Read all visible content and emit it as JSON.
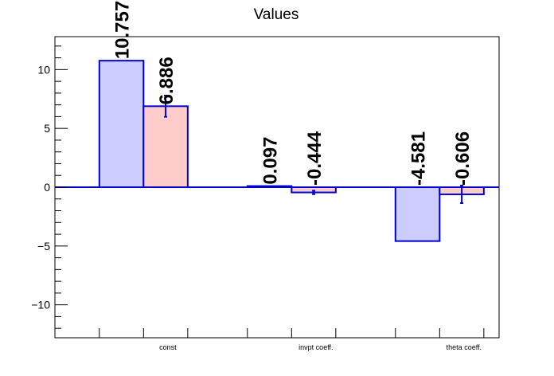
{
  "chart_data": {
    "type": "bar",
    "title": "Values",
    "categories": [
      "const",
      "invpt coeff.",
      "theta coeff."
    ],
    "ylim": [
      -12.8,
      12.8
    ],
    "yticks": [
      -10,
      -5,
      0,
      5,
      10
    ],
    "ytick_labels": [
      "−10",
      "−5",
      "0",
      "5",
      "10"
    ],
    "grid": false,
    "legend": "none",
    "series": [
      {
        "color": "#ccccff",
        "edge_color": "#0000cc",
        "values": [
          10.757,
          0.097,
          -4.581
        ],
        "errors": [
          0,
          0,
          0
        ],
        "labels": [
          "10.757",
          "0.097",
          "-4.581"
        ]
      },
      {
        "color": "#ffcccc",
        "edge_color": "#0000cc",
        "values": [
          6.886,
          -0.444,
          -0.606
        ],
        "errors": [
          0.9,
          0.15,
          0.75
        ],
        "labels": [
          "6.886",
          "-0.444",
          "-0.606"
        ]
      }
    ]
  }
}
